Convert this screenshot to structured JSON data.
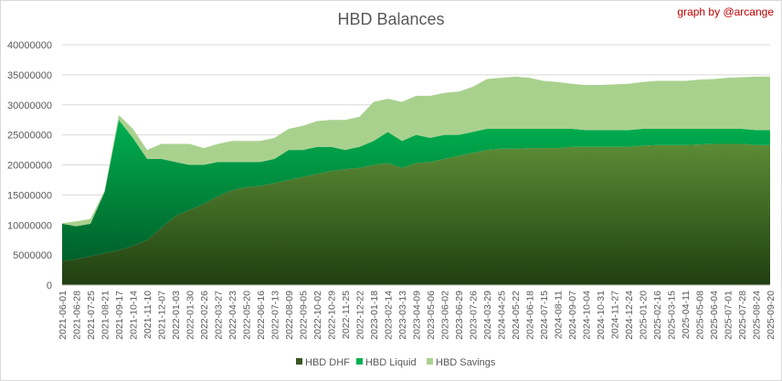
{
  "chart_data": {
    "type": "area",
    "stacked": true,
    "title": "HBD Balances",
    "annotation": "graph by @arcange",
    "xlabel": "",
    "ylabel": "",
    "ylim": [
      0,
      40000000
    ],
    "y_ticks": [
      "0",
      "5000000",
      "10000000",
      "15000000",
      "20000000",
      "25000000",
      "30000000",
      "35000000",
      "40000000"
    ],
    "grid": true,
    "legend_position": "bottom",
    "value_unit_millions": true,
    "categories": [
      "2021-06-01",
      "2021-06-28",
      "2021-07-25",
      "2021-08-21",
      "2021-09-17",
      "2021-10-14",
      "2021-11-10",
      "2021-12-07",
      "2022-01-03",
      "2022-01-30",
      "2022-02-26",
      "2022-03-27",
      "2022-04-23",
      "2022-05-20",
      "2022-06-16",
      "2022-07-13",
      "2022-08-09",
      "2022-09-05",
      "2022-10-02",
      "2022-10-29",
      "2022-11-25",
      "2022-12-22",
      "2023-01-18",
      "2023-02-14",
      "2023-03-13",
      "2023-04-09",
      "2023-05-06",
      "2023-06-02",
      "2023-06-29",
      "2023-07-26",
      "2024-03-29",
      "2024-04-25",
      "2024-05-22",
      "2024-06-18",
      "2024-07-15",
      "2024-08-11",
      "2024-09-07",
      "2024-10-04",
      "2024-10-31",
      "2024-11-27",
      "2024-12-24",
      "2025-01-20",
      "2025-02-16",
      "2025-03-15",
      "2025-04-11",
      "2025-05-08",
      "2025-06-04",
      "2025-07-01",
      "2025-07-28",
      "2025-08-24",
      "2025-09-20"
    ],
    "series": [
      {
        "name": "HBD DHF",
        "color": "#375623",
        "values": [
          4.0,
          4.3,
          4.8,
          5.3,
          5.8,
          6.5,
          7.5,
          9.5,
          11.5,
          12.5,
          13.5,
          14.8,
          15.8,
          16.3,
          16.5,
          17.0,
          17.5,
          18.0,
          18.5,
          19.0,
          19.3,
          19.5,
          20.0,
          20.3,
          19.5,
          20.3,
          20.5,
          21.0,
          21.5,
          22.0,
          22.5,
          22.7,
          22.7,
          22.8,
          22.8,
          22.8,
          23.0,
          23.0,
          23.0,
          23.0,
          23.0,
          23.2,
          23.3,
          23.3,
          23.3,
          23.4,
          23.5,
          23.5,
          23.5,
          23.3,
          23.3
        ]
      },
      {
        "name": "HBD Liquid",
        "color": "#00b050",
        "values": [
          6.2,
          5.5,
          5.4,
          10.2,
          21.7,
          18.0,
          13.5,
          11.5,
          9.0,
          7.5,
          6.5,
          5.7,
          4.7,
          4.2,
          4.0,
          4.0,
          5.0,
          4.5,
          4.5,
          4.0,
          3.2,
          3.5,
          4.0,
          5.2,
          4.5,
          4.7,
          4.0,
          4.0,
          3.5,
          3.5,
          3.5,
          3.3,
          3.3,
          3.2,
          3.2,
          3.2,
          3.0,
          2.8,
          2.8,
          2.8,
          2.8,
          2.8,
          2.7,
          2.7,
          2.7,
          2.6,
          2.5,
          2.5,
          2.5,
          2.5,
          2.5
        ]
      },
      {
        "name": "HBD Savings",
        "color": "#a9d18e",
        "values": [
          0.1,
          0.8,
          0.8,
          0.2,
          0.8,
          1.5,
          1.5,
          2.5,
          3.0,
          3.5,
          2.8,
          3.0,
          3.5,
          3.5,
          3.5,
          3.5,
          3.5,
          4.0,
          4.3,
          4.5,
          5.0,
          5.0,
          6.5,
          5.5,
          6.5,
          6.5,
          7.0,
          7.0,
          7.2,
          7.5,
          8.3,
          8.5,
          8.7,
          8.5,
          8.0,
          7.8,
          7.5,
          7.5,
          7.5,
          7.6,
          7.7,
          7.8,
          8.0,
          8.0,
          8.0,
          8.2,
          8.3,
          8.5,
          8.6,
          8.9,
          8.9
        ]
      }
    ]
  }
}
